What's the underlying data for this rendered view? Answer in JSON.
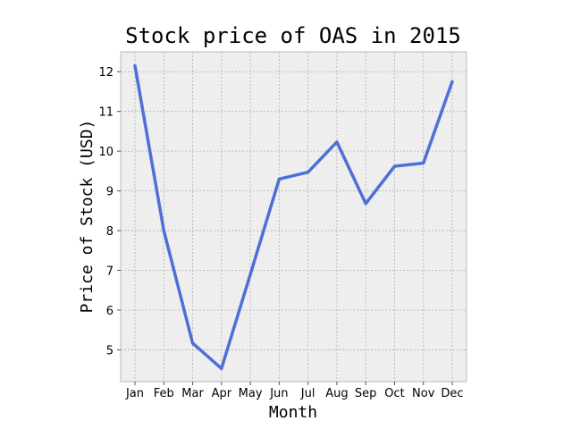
{
  "chart_data": {
    "type": "line",
    "title": "Stock price of OAS in 2015",
    "xlabel": "Month",
    "ylabel": "Price of Stock (USD)",
    "categories": [
      "Jan",
      "Feb",
      "Mar",
      "Apr",
      "May",
      "Jun",
      "Jul",
      "Aug",
      "Sep",
      "Oct",
      "Nov",
      "Dec"
    ],
    "series": [
      {
        "values": [
          12.15,
          8.0,
          5.17,
          4.53,
          6.9,
          9.3,
          9.47,
          10.23,
          8.68,
          9.62,
          9.7,
          11.75
        ],
        "color": "#4f6fd6"
      }
    ],
    "ylim": [
      4.2,
      12.5
    ],
    "yticks": [
      5,
      6,
      7,
      8,
      9,
      10,
      11,
      12
    ],
    "grid": true,
    "legend": "none",
    "colors": {
      "plot_background": "#eeeeee",
      "grid": "#b0b0b0",
      "line": "#4f6fd6"
    }
  }
}
